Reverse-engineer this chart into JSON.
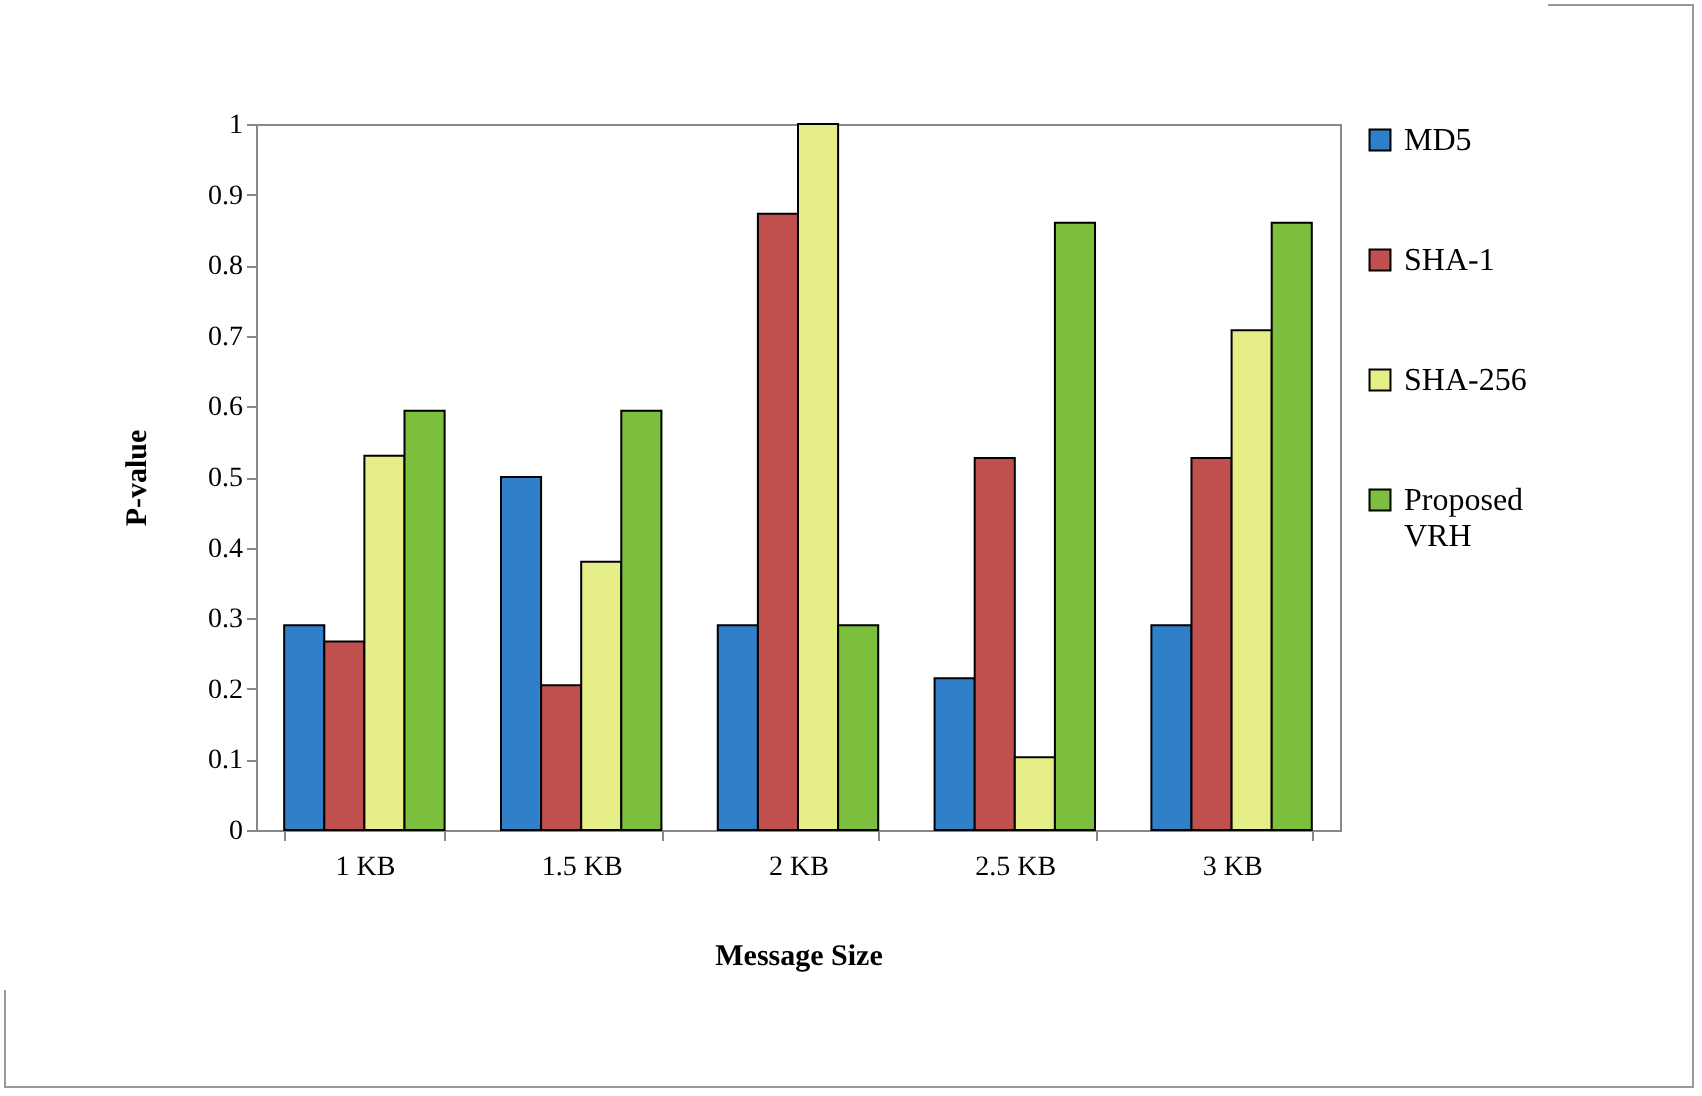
{
  "chart_data": {
    "type": "bar",
    "xlabel": "Message Size",
    "ylabel": "P-value",
    "categories": [
      "1 KB",
      "1.5 KB",
      "2 KB",
      "2.5 KB",
      "3 KB"
    ],
    "series": [
      {
        "name": "MD5",
        "color": "#2f80c8",
        "values": [
          0.29,
          0.5,
          0.29,
          0.215,
          0.29
        ]
      },
      {
        "name": "SHA-1",
        "color": "#c0504d",
        "values": [
          0.267,
          0.205,
          0.873,
          0.527,
          0.527
        ]
      },
      {
        "name": "SHA-256",
        "color": "#e6ee88",
        "values": [
          0.53,
          0.38,
          1.0,
          0.103,
          0.708
        ]
      },
      {
        "name": "Proposed VRH",
        "color": "#7cbf3c",
        "values": [
          0.594,
          0.594,
          0.29,
          0.86,
          0.86
        ]
      }
    ],
    "ylim": [
      0,
      1
    ],
    "yticks": [
      0,
      0.1,
      0.2,
      0.3,
      0.4,
      0.5,
      0.6,
      0.7,
      0.8,
      0.9,
      1
    ],
    "grid": false,
    "legend": "right"
  }
}
